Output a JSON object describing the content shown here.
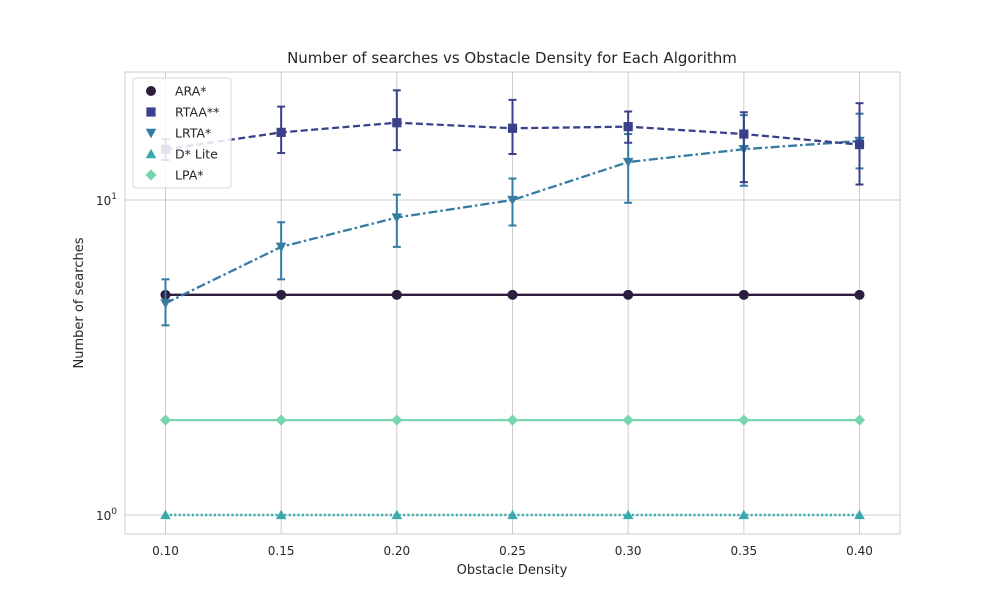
{
  "chart_data": {
    "type": "line",
    "title": "Number of searches vs Obstacle Density for Each Algorithm",
    "xlabel": "Obstacle Density",
    "ylabel": "Number of searches",
    "x": [
      0.1,
      0.15,
      0.2,
      0.25,
      0.3,
      0.35,
      0.4
    ],
    "x_tick_labels": [
      "0.10",
      "0.15",
      "0.20",
      "0.25",
      "0.30",
      "0.35",
      "0.40"
    ],
    "xlim": [
      0.0825,
      0.4175
    ],
    "yscale": "log",
    "ylim": [
      0.87,
      25.5
    ],
    "y_ticks": [
      {
        "value": 1,
        "base": "10",
        "exp": "0"
      },
      {
        "value": 10,
        "base": "10",
        "exp": "1"
      }
    ],
    "grid": true,
    "legend_position": "upper-left",
    "series": [
      {
        "name": "ARA*",
        "color": "#2d1e3e",
        "marker": "circle",
        "linestyle": "solid",
        "values": [
          5,
          5,
          5,
          5,
          5,
          5,
          5
        ]
      },
      {
        "name": "RTAA**",
        "color": "#3a418a",
        "marker": "square",
        "linestyle": "dashed",
        "values": [
          14.5,
          16.4,
          17.6,
          16.9,
          17.1,
          16.2,
          15.0
        ],
        "err_low": [
          13.4,
          14.1,
          14.4,
          14.0,
          15.2,
          11.4,
          11.2
        ],
        "err_high": [
          15.6,
          19.8,
          22.3,
          20.8,
          19.1,
          19.0,
          20.3
        ]
      },
      {
        "name": "LRTA*",
        "color": "#357ba2",
        "marker": "triangle-down",
        "linestyle": "dashdot",
        "values": [
          4.7,
          7.1,
          8.8,
          10.0,
          13.2,
          14.5,
          15.4
        ],
        "err_low": [
          4.0,
          5.6,
          7.1,
          8.3,
          9.8,
          11.1,
          12.6
        ],
        "err_high": [
          5.6,
          8.5,
          10.4,
          11.7,
          16.2,
          18.6,
          18.8
        ]
      },
      {
        "name": "D* Lite",
        "color": "#38aaac",
        "marker": "triangle-up",
        "linestyle": "dotted",
        "values": [
          1,
          1,
          1,
          1,
          1,
          1,
          1
        ]
      },
      {
        "name": "LPA*",
        "color": "#78d6ae",
        "marker": "diamond",
        "linestyle": "solid",
        "values": [
          2,
          2,
          2,
          2,
          2,
          2,
          2
        ]
      }
    ]
  }
}
